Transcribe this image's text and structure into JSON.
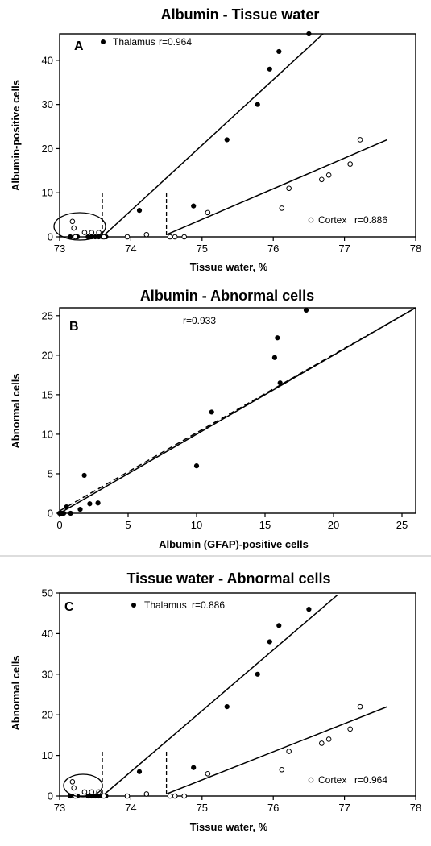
{
  "chart_data": [
    {
      "type": "scatter",
      "title": "Albumin - Tissue water",
      "panel_letter": "A",
      "xlabel": "Tissue water, %",
      "ylabel": "Albumin-positive cells",
      "xlim": [
        73,
        78
      ],
      "ylim": [
        0,
        46
      ],
      "xticks": [
        "73",
        "74",
        "75",
        "76",
        "77",
        "78"
      ],
      "yticks": [
        "0",
        "10",
        "20",
        "30",
        "40"
      ],
      "grid": false,
      "series": [
        {
          "name": "Thalamus",
          "r_text": "r=0.964",
          "marker": "filled",
          "x": [
            73.15,
            73.25,
            73.4,
            73.45,
            73.5,
            73.55,
            73.6,
            73.65,
            74.12,
            74.88,
            75.35,
            75.78,
            75.95,
            76.08,
            76.5
          ],
          "y": [
            0,
            0,
            0,
            0,
            0,
            0,
            0,
            0,
            6,
            7,
            22,
            30,
            38,
            42,
            46
          ],
          "fit": {
            "x": [
              73.6,
              76.7
            ],
            "y": [
              0,
              46
            ]
          },
          "threshold_x": 73.6
        },
        {
          "name": "Cortex",
          "r_text": "r=0.886",
          "marker": "open",
          "x": [
            73.18,
            73.2,
            73.22,
            73.35,
            73.45,
            73.55,
            73.62,
            73.95,
            74.22,
            74.55,
            74.62,
            74.75,
            75.08,
            76.12,
            76.22,
            76.68,
            76.78,
            77.08,
            77.22
          ],
          "y": [
            3.5,
            2,
            0,
            1,
            1,
            1,
            0,
            0,
            0.5,
            0,
            0,
            0,
            5.5,
            6.5,
            11,
            13,
            14,
            16.5,
            22
          ],
          "fit": {
            "x": [
              74.5,
              77.6
            ],
            "y": [
              0.5,
              22
            ]
          },
          "threshold_x": 74.5
        }
      ]
    },
    {
      "type": "scatter",
      "title": "Albumin - Abnormal cells",
      "panel_letter": "B",
      "xlabel": "Albumin (GFAP)-positive cells",
      "ylabel": "Abnormal cells",
      "xlim": [
        0,
        26
      ],
      "ylim": [
        0,
        26
      ],
      "xticks": [
        "0",
        "5",
        "10",
        "15",
        "20",
        "25"
      ],
      "yticks": [
        "0",
        "5",
        "10",
        "15",
        "20",
        "25"
      ],
      "grid": false,
      "series": [
        {
          "r_text": "r=0.933",
          "marker": "filled",
          "x": [
            0,
            0.1,
            0.2,
            0.3,
            0.5,
            0.8,
            1.5,
            1.8,
            2.2,
            2.8,
            10,
            11.1,
            15.7,
            15.9,
            16.1,
            18
          ],
          "y": [
            0,
            0,
            0,
            0,
            0.8,
            0,
            0.5,
            4.8,
            1.2,
            1.3,
            6,
            12.8,
            19.7,
            22.2,
            16.5,
            25.7
          ],
          "fit": {
            "x": [
              0,
              26
            ],
            "y": [
              0,
              26
            ]
          },
          "reference_line": {
            "style": "dashed",
            "x": [
              0,
              26
            ],
            "y": [
              0.3,
              26
            ]
          }
        }
      ]
    },
    {
      "type": "scatter",
      "title": "Tissue water - Abnormal cells",
      "panel_letter": "C",
      "xlabel": "Tissue water, %",
      "ylabel": "Abnormal cells",
      "xlim": [
        73,
        78
      ],
      "ylim": [
        0,
        50
      ],
      "xticks": [
        "73",
        "74",
        "75",
        "76",
        "77",
        "78"
      ],
      "yticks": [
        "0",
        "10",
        "20",
        "30",
        "40",
        "50"
      ],
      "grid": false,
      "series": [
        {
          "name": "Thalamus",
          "r_text": "r=0.886",
          "marker": "filled",
          "x": [
            73.15,
            73.25,
            73.4,
            73.45,
            73.5,
            73.55,
            73.6,
            73.65,
            74.12,
            74.88,
            75.35,
            75.78,
            75.95,
            76.08,
            76.5
          ],
          "y": [
            0,
            0,
            0,
            0,
            0,
            0,
            0,
            0,
            6,
            7,
            22,
            30,
            38,
            42,
            46
          ],
          "fit": {
            "x": [
              73.6,
              76.9
            ],
            "y": [
              0,
              49.5
            ]
          },
          "threshold_x": 73.6
        },
        {
          "name": "Cortex",
          "r_text": "r=0.964",
          "marker": "open",
          "x": [
            73.18,
            73.2,
            73.22,
            73.35,
            73.45,
            73.55,
            73.62,
            73.95,
            74.22,
            74.55,
            74.62,
            74.75,
            75.08,
            76.12,
            76.22,
            76.68,
            76.78,
            77.08,
            77.22
          ],
          "y": [
            3.5,
            2,
            0,
            1,
            1,
            1,
            0,
            0,
            0.5,
            0,
            0,
            0,
            5.5,
            6.5,
            11,
            13,
            14,
            16.5,
            22
          ],
          "fit": {
            "x": [
              74.5,
              77.6
            ],
            "y": [
              0.5,
              22
            ]
          },
          "threshold_x": 74.5
        }
      ]
    }
  ]
}
